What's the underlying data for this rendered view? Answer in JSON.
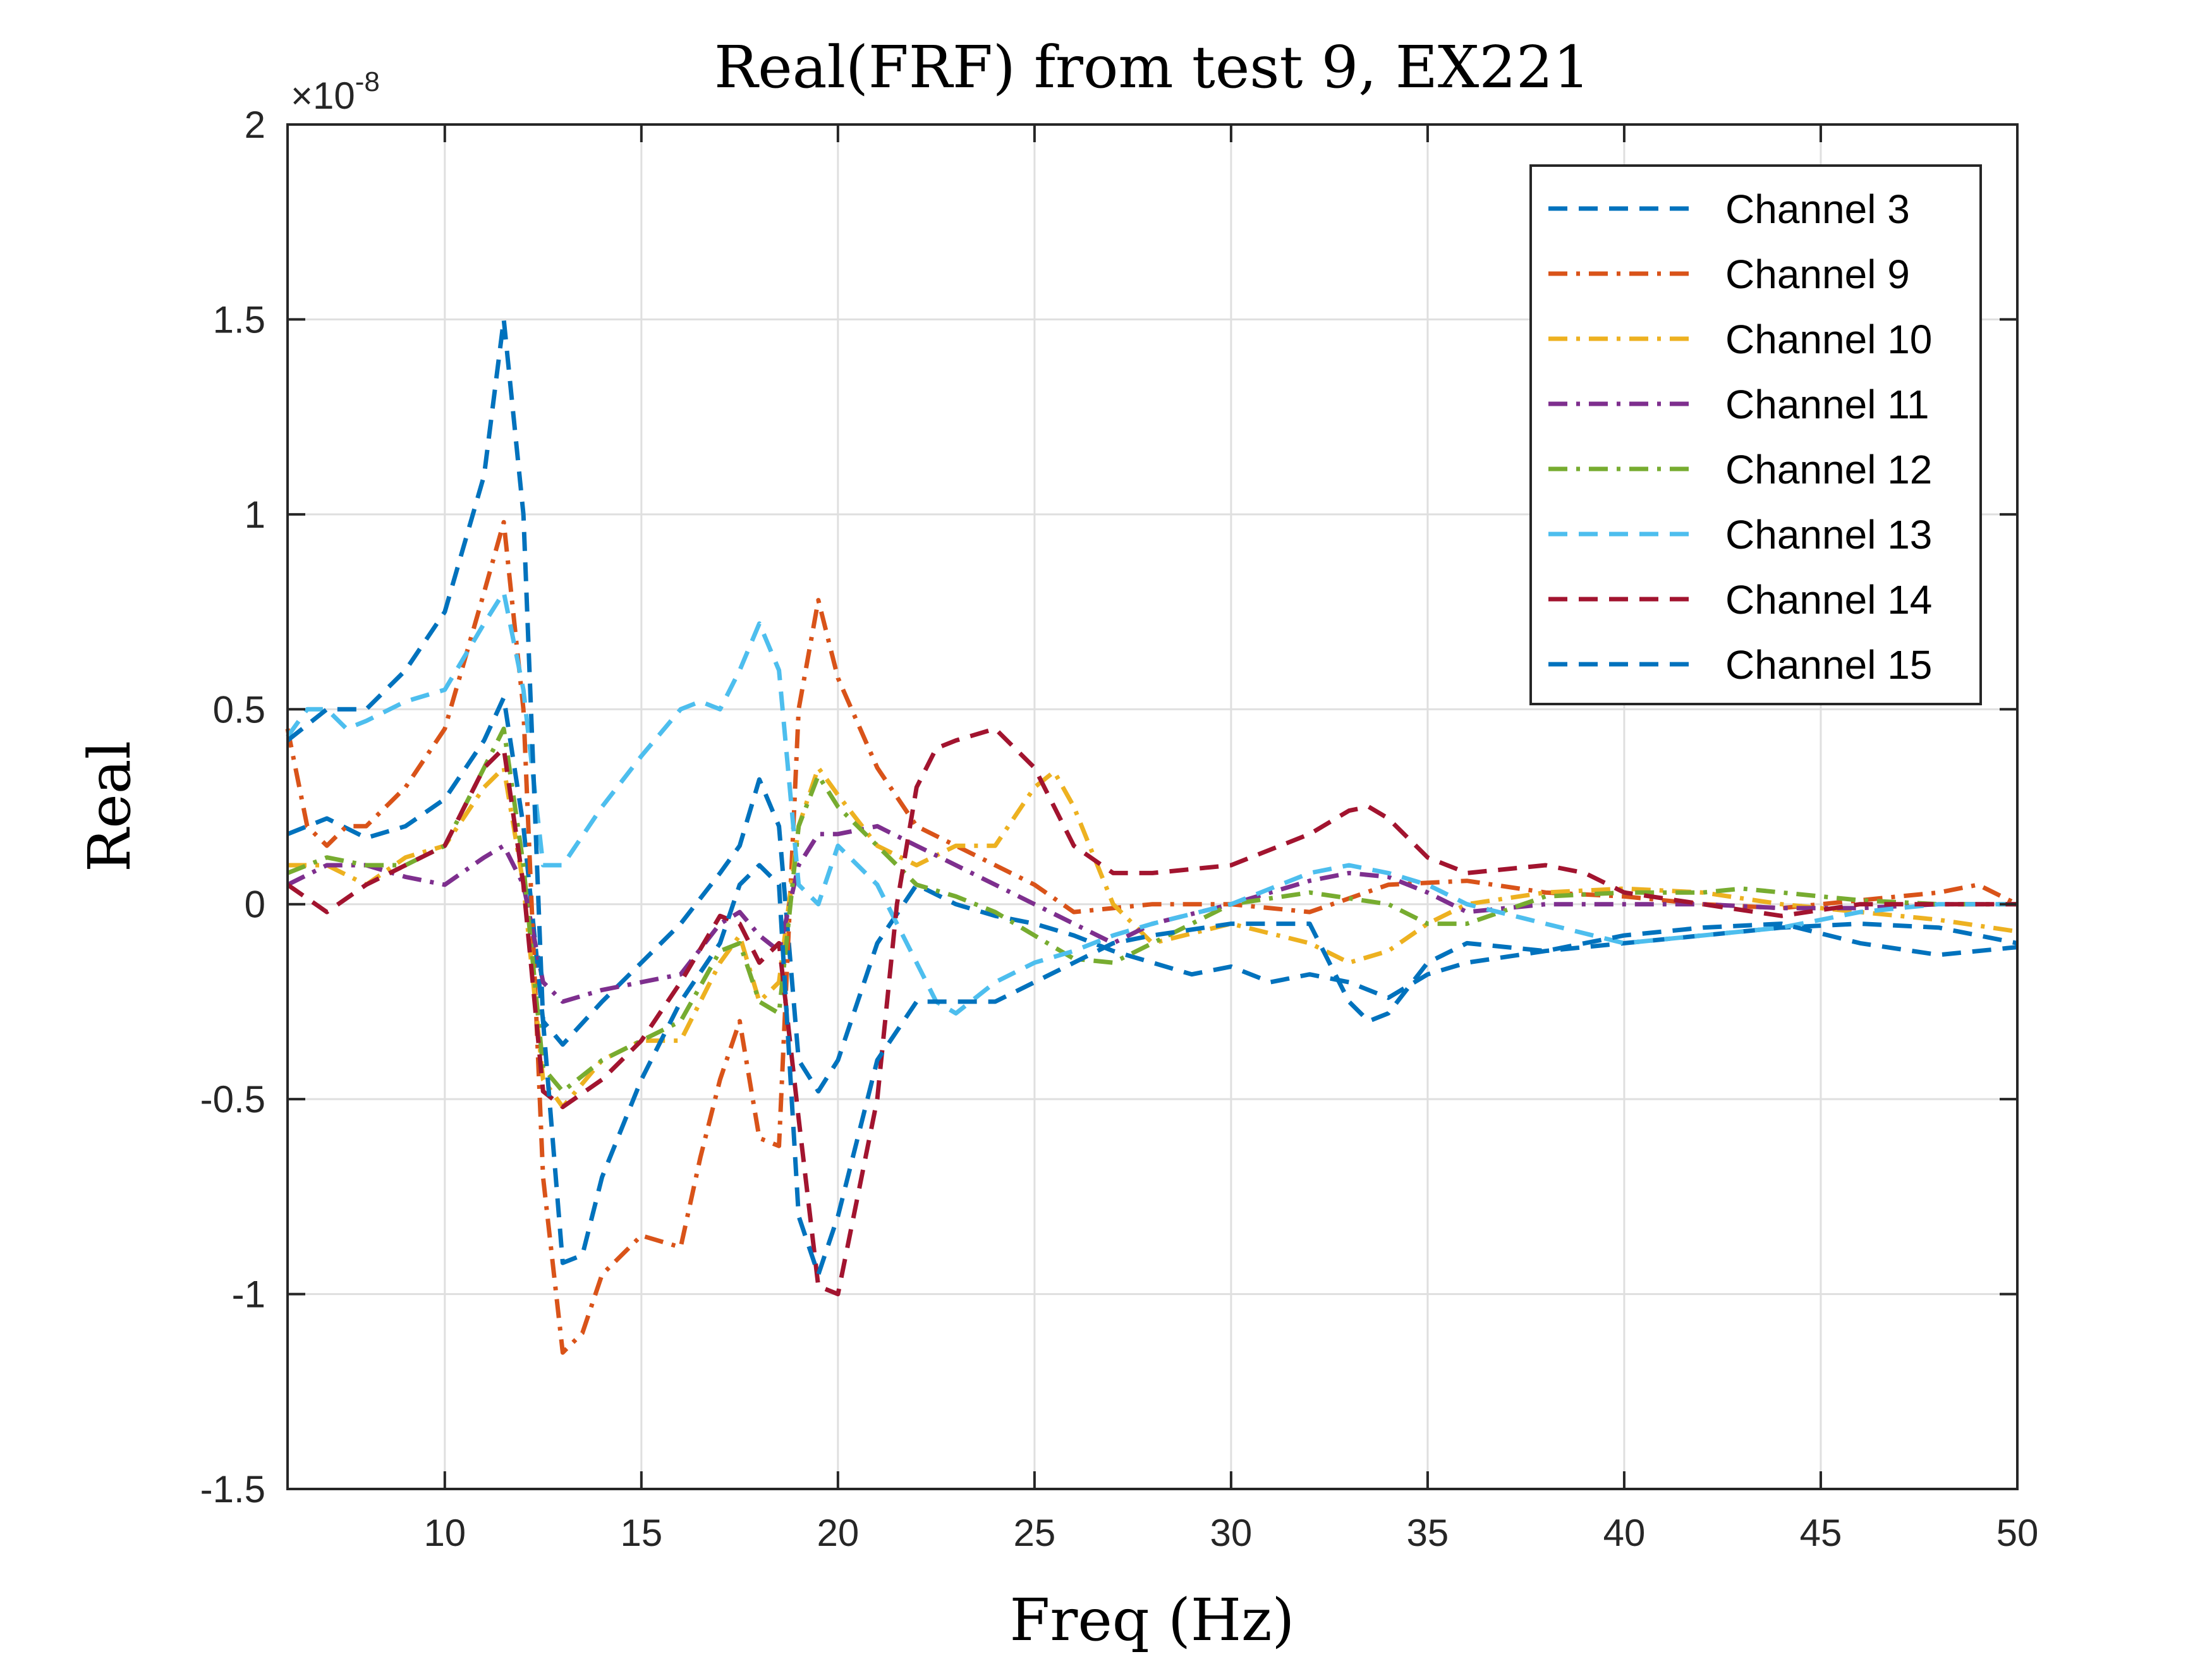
{
  "chart_data": {
    "type": "line",
    "title": "Real(FRF) from test 9, EX221",
    "xlabel": "Freq (Hz)",
    "ylabel": "Real",
    "y_exponent_label": "×10",
    "y_exponent_power": "-8",
    "xlim": [
      6,
      50
    ],
    "ylim": [
      -1.5,
      2
    ],
    "xticks": [
      10,
      15,
      20,
      25,
      30,
      35,
      40,
      45,
      50
    ],
    "xtick_labels": [
      "10",
      "15",
      "20",
      "25",
      "30",
      "35",
      "40",
      "45",
      "50"
    ],
    "yticks": [
      -1.5,
      -1,
      -0.5,
      0,
      0.5,
      1,
      1.5,
      2
    ],
    "ytick_labels": [
      "-1.5",
      "-1",
      "-0.5",
      "0",
      "0.5",
      "1",
      "1.5",
      "2"
    ],
    "grid": true,
    "legend_position": "top-right",
    "series": [
      {
        "name": "Channel 3",
        "color": "#0072BD",
        "dash": "dashed",
        "x": [
          6,
          7,
          8,
          9,
          10,
          11,
          11.5,
          12,
          12.5,
          13,
          14,
          15,
          16,
          17,
          17.5,
          18,
          18.5,
          19,
          19.5,
          20,
          21,
          22,
          23,
          24,
          25,
          26,
          27,
          28,
          29,
          30,
          31,
          32,
          33,
          34,
          35,
          36,
          38,
          40,
          42,
          44,
          46,
          48,
          50
        ],
        "y": [
          0.18,
          0.22,
          0.17,
          0.2,
          0.27,
          0.42,
          0.53,
          0.2,
          -0.3,
          -0.36,
          -0.25,
          -0.15,
          -0.05,
          0.08,
          0.15,
          0.32,
          0.2,
          -0.4,
          -0.48,
          -0.4,
          -0.1,
          0.05,
          0.0,
          -0.03,
          -0.05,
          -0.08,
          -0.12,
          -0.15,
          -0.18,
          -0.16,
          -0.2,
          -0.18,
          -0.2,
          -0.24,
          -0.18,
          -0.15,
          -0.12,
          -0.1,
          -0.08,
          -0.06,
          -0.05,
          -0.06,
          -0.1
        ]
      },
      {
        "name": "Channel 9",
        "color": "#D95319",
        "dash": "dashdot",
        "x": [
          6,
          6.5,
          7,
          7.5,
          8,
          9,
          10,
          11,
          11.5,
          12,
          12.5,
          13,
          13.5,
          14,
          15,
          16,
          16.5,
          17,
          17.5,
          18,
          18.5,
          19,
          19.5,
          20,
          21,
          22,
          23,
          24,
          25,
          26,
          27,
          28,
          30,
          32,
          34,
          36,
          38,
          40,
          42,
          44,
          46,
          48,
          49,
          50
        ],
        "y": [
          0.45,
          0.2,
          0.15,
          0.2,
          0.2,
          0.3,
          0.45,
          0.8,
          0.98,
          0.5,
          -0.7,
          -1.15,
          -1.1,
          -0.95,
          -0.85,
          -0.88,
          -0.65,
          -0.45,
          -0.3,
          -0.6,
          -0.62,
          0.5,
          0.78,
          0.58,
          0.35,
          0.2,
          0.15,
          0.1,
          0.05,
          -0.02,
          -0.01,
          0.0,
          0.0,
          -0.02,
          0.05,
          0.06,
          0.03,
          0.02,
          0.0,
          -0.01,
          0.01,
          0.03,
          0.05,
          0.0
        ]
      },
      {
        "name": "Channel 10",
        "color": "#EDB120",
        "dash": "dashdot",
        "x": [
          6,
          7,
          8,
          9,
          10,
          11,
          11.5,
          12,
          12.5,
          13,
          14,
          15,
          16,
          17,
          17.5,
          18,
          18.5,
          19,
          19.5,
          20,
          21,
          22,
          23,
          24,
          25,
          25.5,
          26,
          27,
          28,
          30,
          32,
          33,
          34,
          35,
          36,
          38,
          40,
          42,
          44,
          46,
          48,
          50
        ],
        "y": [
          0.1,
          0.1,
          0.05,
          0.12,
          0.15,
          0.3,
          0.35,
          0.05,
          -0.45,
          -0.52,
          -0.4,
          -0.35,
          -0.35,
          -0.15,
          -0.08,
          -0.25,
          -0.2,
          0.2,
          0.35,
          0.28,
          0.15,
          0.1,
          0.15,
          0.15,
          0.3,
          0.34,
          0.25,
          0.0,
          -0.1,
          -0.05,
          -0.1,
          -0.15,
          -0.12,
          -0.05,
          0.0,
          0.03,
          0.04,
          0.03,
          0.0,
          -0.02,
          -0.04,
          -0.07
        ]
      },
      {
        "name": "Channel 11",
        "color": "#7E2F8E",
        "dash": "dashdot",
        "x": [
          6,
          7,
          8,
          9,
          10,
          11,
          11.5,
          12,
          12.5,
          13,
          14,
          15,
          16,
          17,
          17.5,
          18,
          18.5,
          19,
          19.5,
          20,
          21,
          22,
          23,
          24,
          25,
          26,
          27,
          28,
          30,
          32,
          33,
          34,
          35,
          36,
          38,
          40,
          42,
          44,
          46,
          48,
          50
        ],
        "y": [
          0.05,
          0.1,
          0.1,
          0.07,
          0.05,
          0.12,
          0.15,
          0.05,
          -0.2,
          -0.25,
          -0.22,
          -0.2,
          -0.18,
          -0.05,
          -0.02,
          -0.08,
          -0.12,
          0.1,
          0.18,
          0.18,
          0.2,
          0.15,
          0.1,
          0.05,
          0.0,
          -0.05,
          -0.1,
          -0.05,
          0.0,
          0.06,
          0.08,
          0.07,
          0.03,
          -0.02,
          0.0,
          0.0,
          0.0,
          -0.01,
          -0.01,
          0.0,
          0.0
        ]
      },
      {
        "name": "Channel 12",
        "color": "#77AC30",
        "dash": "dashdot",
        "x": [
          6,
          7,
          8,
          9,
          10,
          11,
          11.5,
          12,
          12.5,
          13,
          14,
          15,
          16,
          17,
          17.5,
          18,
          18.5,
          19,
          19.5,
          20,
          21,
          22,
          23,
          24,
          25,
          26,
          27,
          28,
          30,
          32,
          34,
          35,
          36,
          38,
          40,
          42,
          43,
          44,
          46,
          48,
          50
        ],
        "y": [
          0.08,
          0.12,
          0.1,
          0.1,
          0.15,
          0.35,
          0.45,
          0.1,
          -0.42,
          -0.48,
          -0.4,
          -0.35,
          -0.3,
          -0.12,
          -0.1,
          -0.25,
          -0.28,
          0.2,
          0.33,
          0.25,
          0.15,
          0.05,
          0.02,
          -0.02,
          -0.08,
          -0.14,
          -0.15,
          -0.1,
          0.0,
          0.03,
          0.0,
          -0.05,
          -0.05,
          0.02,
          0.03,
          0.03,
          0.04,
          0.03,
          0.01,
          0.0,
          0.0
        ]
      },
      {
        "name": "Channel 13",
        "color": "#4DBEEE",
        "dash": "dashed",
        "x": [
          6,
          6.5,
          7,
          7.5,
          8,
          9,
          10,
          11,
          11.5,
          12,
          12.5,
          13,
          14,
          15,
          16,
          16.5,
          17,
          17.5,
          18,
          18.5,
          19,
          19.5,
          20,
          21,
          22,
          22.5,
          23,
          24,
          25,
          26,
          27,
          28,
          30,
          32,
          33,
          34,
          35,
          36,
          38,
          40,
          42,
          44,
          46,
          48,
          50
        ],
        "y": [
          0.43,
          0.5,
          0.5,
          0.45,
          0.47,
          0.52,
          0.55,
          0.72,
          0.8,
          0.55,
          0.1,
          0.1,
          0.25,
          0.38,
          0.5,
          0.52,
          0.5,
          0.6,
          0.72,
          0.6,
          0.05,
          0.0,
          0.15,
          0.05,
          -0.15,
          -0.25,
          -0.28,
          -0.2,
          -0.15,
          -0.12,
          -0.08,
          -0.05,
          0.0,
          0.08,
          0.1,
          0.08,
          0.05,
          0.0,
          -0.05,
          -0.1,
          -0.08,
          -0.06,
          -0.02,
          0.0,
          0.0
        ]
      },
      {
        "name": "Channel 14",
        "color": "#A2142F",
        "dash": "dashed",
        "x": [
          6,
          7,
          8,
          9,
          10,
          11,
          11.5,
          12,
          12.5,
          13,
          14,
          15,
          16,
          17,
          17.5,
          18,
          18.5,
          19,
          19.5,
          20,
          21,
          21.5,
          22,
          22.5,
          23,
          24,
          25,
          26,
          27,
          28,
          30,
          32,
          33,
          33.5,
          34,
          35,
          36,
          38,
          39,
          40,
          42,
          44,
          46,
          48,
          50
        ],
        "y": [
          0.05,
          -0.02,
          0.05,
          0.1,
          0.15,
          0.35,
          0.4,
          0.05,
          -0.48,
          -0.52,
          -0.45,
          -0.35,
          -0.2,
          -0.03,
          -0.05,
          -0.15,
          -0.1,
          -0.55,
          -0.98,
          -1.0,
          -0.5,
          0.0,
          0.3,
          0.4,
          0.42,
          0.45,
          0.35,
          0.15,
          0.08,
          0.08,
          0.1,
          0.18,
          0.24,
          0.25,
          0.22,
          0.12,
          0.08,
          0.1,
          0.08,
          0.03,
          0.0,
          -0.03,
          0.0,
          0.0,
          0.0
        ]
      },
      {
        "name": "Channel 15",
        "color": "#0072BD",
        "dash": "dashed",
        "x": [
          6,
          7,
          8,
          9,
          10,
          11,
          11.5,
          12,
          12.5,
          13,
          13.5,
          14,
          15,
          16,
          17,
          17.5,
          18,
          18.5,
          19,
          19.5,
          20,
          21,
          22,
          23,
          24,
          25,
          26,
          27,
          28,
          30,
          32,
          33,
          33.5,
          34,
          35,
          36,
          38,
          40,
          42,
          44,
          46,
          48,
          50
        ],
        "y": [
          0.42,
          0.5,
          0.5,
          0.6,
          0.75,
          1.1,
          1.5,
          1.0,
          -0.3,
          -0.92,
          -0.9,
          -0.7,
          -0.45,
          -0.25,
          -0.1,
          0.05,
          0.1,
          0.05,
          -0.8,
          -0.95,
          -0.8,
          -0.4,
          -0.25,
          -0.25,
          -0.25,
          -0.2,
          -0.15,
          -0.1,
          -0.08,
          -0.05,
          -0.05,
          -0.25,
          -0.3,
          -0.28,
          -0.15,
          -0.1,
          -0.12,
          -0.08,
          -0.06,
          -0.05,
          -0.1,
          -0.13,
          -0.11
        ]
      }
    ]
  }
}
